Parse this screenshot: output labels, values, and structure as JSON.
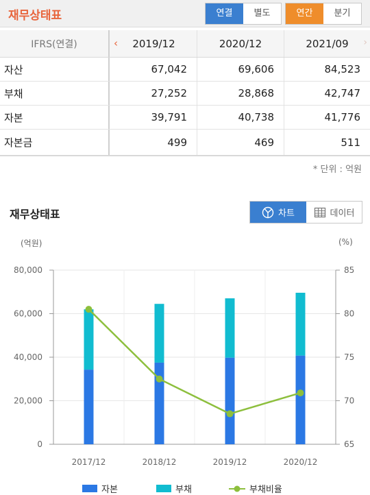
{
  "header": {
    "title": "재무상태표",
    "consolidation": [
      {
        "label": "연결",
        "active": true
      },
      {
        "label": "별도",
        "active": false
      }
    ],
    "period": [
      {
        "label": "연간",
        "active": true
      },
      {
        "label": "분기",
        "active": false
      }
    ]
  },
  "table": {
    "corner_label": "IFRS(연결)",
    "columns": [
      "2019/12",
      "2020/12",
      "2021/09"
    ],
    "rows": [
      {
        "label": "자산",
        "values": [
          "67,042",
          "69,606",
          "84,523"
        ]
      },
      {
        "label": "부채",
        "values": [
          "27,252",
          "28,868",
          "42,747"
        ]
      },
      {
        "label": "자본",
        "values": [
          "39,791",
          "40,738",
          "41,776"
        ]
      },
      {
        "label": "자본금",
        "values": [
          "499",
          "469",
          "511"
        ]
      }
    ],
    "unit_note": "* 단위 : 억원"
  },
  "chart_section": {
    "title": "재무상태표",
    "toggle_chart": "차트",
    "toggle_data": "데이터",
    "left_unit": "(억원)",
    "right_unit": "(%)",
    "colors": {
      "equity": "#2b78e4",
      "liability": "#11bcd0",
      "ratio": "#8dbf3d"
    }
  },
  "chart_data": {
    "type": "bar",
    "stacked": true,
    "categories": [
      "2017/12",
      "2018/12",
      "2019/12",
      "2020/12"
    ],
    "series": [
      {
        "name": "자본",
        "axis": "left",
        "values": [
          34300,
          37500,
          39791,
          40738
        ]
      },
      {
        "name": "부채",
        "axis": "left",
        "values": [
          27700,
          27000,
          27252,
          28868
        ]
      },
      {
        "name": "부채비율",
        "axis": "right",
        "type": "line",
        "values": [
          80.5,
          72.5,
          68.5,
          70.9
        ]
      }
    ],
    "y_left": {
      "min": 0,
      "max": 80000,
      "ticks": [
        "0",
        "20,000",
        "40,000",
        "60,000",
        "80,000"
      ]
    },
    "y_right": {
      "min": 65,
      "max": 85,
      "ticks": [
        "65",
        "70",
        "75",
        "80",
        "85"
      ]
    },
    "grid": true,
    "legend": "bottom"
  }
}
